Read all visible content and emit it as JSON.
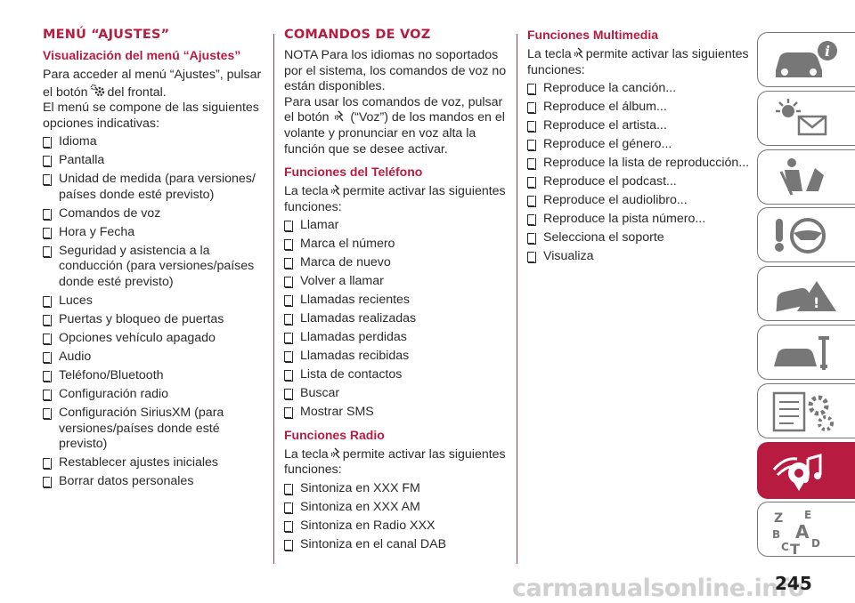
{
  "column1": {
    "title": "MENÚ “AJUSTES”",
    "subtitle": "Visualización del menú “Ajustes”",
    "intro_a": "Para acceder al menú “Ajustes”, pulsar el botón",
    "intro_b": "del frontal.",
    "intro_c": "El menú se compone de las siguientes opciones indicativas:",
    "items": [
      "Idioma",
      "Pantalla",
      "Unidad de medida (para versiones/ países donde esté previsto)",
      "Comandos de voz",
      "Hora y Fecha",
      "Seguridad y asistencia a la conducción (para versiones/países donde esté previsto)",
      "Luces",
      "Puertas y bloqueo de puertas",
      "Opciones vehículo apagado",
      "Audio",
      "Teléfono/Bluetooth",
      "Configuración radio",
      "Configuración SiriusXM (para versiones/países donde esté previsto)",
      "Restablecer ajustes iniciales",
      "Borrar datos personales"
    ]
  },
  "column2": {
    "title": "COMANDOS DE VOZ",
    "nota": "NOTA Para los idiomas no soportados por el sistema, los comandos de voz no están disponibles.",
    "usage_a": "Para usar los comandos de voz, pulsar el botón",
    "usage_b": "(“Voz”) de los mandos en el volante y pronunciar en voz alta la función que se desee activar.",
    "phone_heading": "Funciones del Teléfono",
    "phone_intro_a": "La tecla",
    "phone_intro_b": "permite activar las siguientes funciones:",
    "phone_items": [
      "Llamar",
      "Marca el número",
      "Marca de nuevo",
      "Volver a llamar",
      "Llamadas recientes",
      "Llamadas realizadas",
      "Llamadas perdidas",
      "Llamadas recibidas",
      "Lista de contactos",
      "Buscar",
      "Mostrar SMS"
    ],
    "radio_heading": "Funciones Radio",
    "radio_intro_a": "La tecla",
    "radio_intro_b": "permite activar las siguientes funciones:",
    "radio_items": [
      "Sintoniza en XXX FM",
      "Sintoniza en XXX AM",
      "Sintoniza en Radio XXX",
      "Sintoniza en el canal DAB"
    ]
  },
  "column3": {
    "heading": "Funciones Multimedia",
    "intro_a": "La tecla",
    "intro_b": "permite activar las siguientes funciones:",
    "items": [
      "Reproduce la canción...",
      "Reproduce el álbum...",
      "Reproduce el artista...",
      "Reproduce el género...",
      "Reproduce la lista de reproducción...",
      "Reproduce el podcast...",
      "Reproduce el audiolibro...",
      "Reproduce la pista número...",
      "Selecciona el soporte",
      "Visualiza"
    ]
  },
  "sidebar": {
    "tabs": [
      {
        "icon": "car-info-icon"
      },
      {
        "icon": "warning-lights-icon"
      },
      {
        "icon": "seat-safety-icon"
      },
      {
        "icon": "starting-driving-icon"
      },
      {
        "icon": "emergency-icon"
      },
      {
        "icon": "maintenance-icon"
      },
      {
        "icon": "technical-data-icon"
      },
      {
        "icon": "multimedia-icon",
        "active": true
      },
      {
        "icon": "index-icon"
      }
    ],
    "index_letters": "Z E B A C T D"
  },
  "page_number": "245",
  "watermark": "carmanualsonline.info",
  "colors": {
    "accent": "#b71c40",
    "text": "#2a2a2a",
    "tab_border": "#777777"
  }
}
